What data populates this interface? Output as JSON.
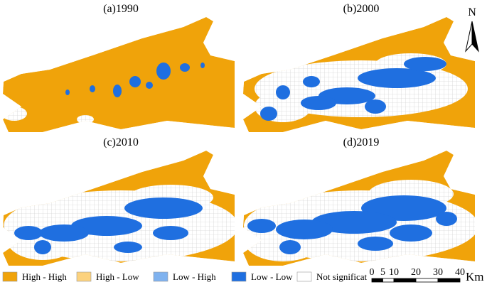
{
  "panels": [
    {
      "title": "(a)1990"
    },
    {
      "title": "(b)2000"
    },
    {
      "title": "(c)2010"
    },
    {
      "title": "(d)2019"
    }
  ],
  "legend": [
    {
      "label": "High - High",
      "color": "#f0a30a"
    },
    {
      "label": "High - Low",
      "color": "#fcd27e"
    },
    {
      "label": "Low - High",
      "color": "#7fb2ef"
    },
    {
      "label": "Low - Low",
      "color": "#1f6fe0"
    },
    {
      "label": "Not significat",
      "color": "#ffffff"
    }
  ],
  "north": "N",
  "scale": {
    "ticks": [
      "0",
      "5",
      "10",
      "20",
      "30",
      "40"
    ],
    "unit": "Km"
  }
}
